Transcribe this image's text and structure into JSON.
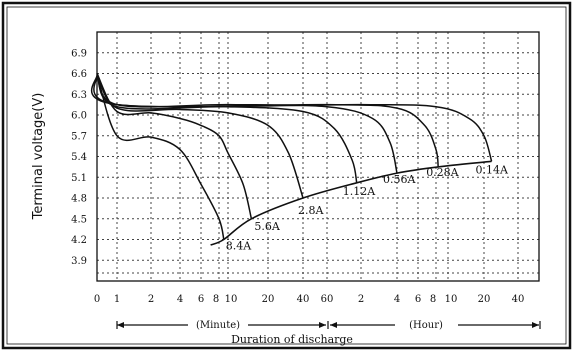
{
  "chart_data": {
    "type": "line",
    "title": "",
    "ylabel": "Terminal voltage(V)",
    "xlabel": "Duration of discharge",
    "ylim": [
      3.6,
      7.2
    ],
    "y_ticks": [
      "6.9",
      "6.6",
      "6.3",
      "6.0",
      "5.7",
      "5.4",
      "5.1",
      "4.8",
      "4.5",
      "4.2",
      "3.9"
    ],
    "x_ticks": [
      "0",
      "1",
      "2",
      "4",
      "6",
      "8",
      "10",
      "20",
      "40",
      "60",
      "2",
      "4",
      "6",
      "8",
      "10",
      "20",
      "40"
    ],
    "x_sections": [
      {
        "label": "(Minute)"
      },
      {
        "label": "(Hour)"
      }
    ],
    "grid": true,
    "series": [
      {
        "name": "8.4A",
        "end_time_min": 9,
        "end_voltage": 4.2,
        "points": [
          [
            0,
            6.6
          ],
          [
            1,
            5.7
          ],
          [
            2,
            5.68
          ],
          [
            4,
            5.5
          ],
          [
            6,
            5.0
          ],
          [
            8,
            4.5
          ],
          [
            9,
            4.2
          ]
        ]
      },
      {
        "name": "5.6A",
        "end_time_min": 15,
        "end_voltage": 4.5,
        "points": [
          [
            0,
            6.6
          ],
          [
            1,
            6.05
          ],
          [
            2,
            6.03
          ],
          [
            4,
            5.95
          ],
          [
            6,
            5.85
          ],
          [
            8,
            5.7
          ],
          [
            10,
            5.45
          ],
          [
            13,
            5.0
          ],
          [
            15,
            4.5
          ]
        ]
      },
      {
        "name": "2.8A",
        "end_time_min": 40,
        "end_voltage": 4.8,
        "points": [
          [
            0,
            6.6
          ],
          [
            1,
            6.1
          ],
          [
            4,
            6.08
          ],
          [
            10,
            6.03
          ],
          [
            20,
            5.85
          ],
          [
            30,
            5.45
          ],
          [
            40,
            4.8
          ]
        ]
      },
      {
        "name": "1.12A",
        "end_time_min": 110,
        "end_voltage": 5.02,
        "points": [
          [
            0,
            6.6
          ],
          [
            1,
            6.12
          ],
          [
            10,
            6.12
          ],
          [
            40,
            6.05
          ],
          [
            70,
            5.8
          ],
          [
            100,
            5.35
          ],
          [
            110,
            5.02
          ]
        ]
      },
      {
        "name": "0.56A",
        "end_time_min": 240,
        "end_voltage": 5.16,
        "points": [
          [
            0,
            6.6
          ],
          [
            1,
            6.15
          ],
          [
            10,
            6.15
          ],
          [
            60,
            6.12
          ],
          [
            150,
            5.95
          ],
          [
            210,
            5.6
          ],
          [
            240,
            5.16
          ]
        ]
      },
      {
        "name": "0.28A",
        "end_time_min": 500,
        "end_voltage": 5.25,
        "points": [
          [
            0,
            6.6
          ],
          [
            1,
            6.15
          ],
          [
            60,
            6.15
          ],
          [
            240,
            6.1
          ],
          [
            400,
            5.85
          ],
          [
            480,
            5.5
          ],
          [
            500,
            5.25
          ]
        ]
      },
      {
        "name": "0.14A",
        "end_time_min": 1400,
        "end_voltage": 5.33,
        "points": [
          [
            0,
            6.6
          ],
          [
            1,
            6.15
          ],
          [
            120,
            6.15
          ],
          [
            480,
            6.12
          ],
          [
            900,
            5.95
          ],
          [
            1200,
            5.7
          ],
          [
            1400,
            5.33
          ]
        ]
      }
    ],
    "end_voltage_curve": [
      [
        7,
        4.12
      ],
      [
        9,
        4.2
      ],
      [
        15,
        4.5
      ],
      [
        40,
        4.8
      ],
      [
        110,
        5.02
      ],
      [
        240,
        5.16
      ],
      [
        500,
        5.25
      ],
      [
        1400,
        5.33
      ]
    ]
  }
}
